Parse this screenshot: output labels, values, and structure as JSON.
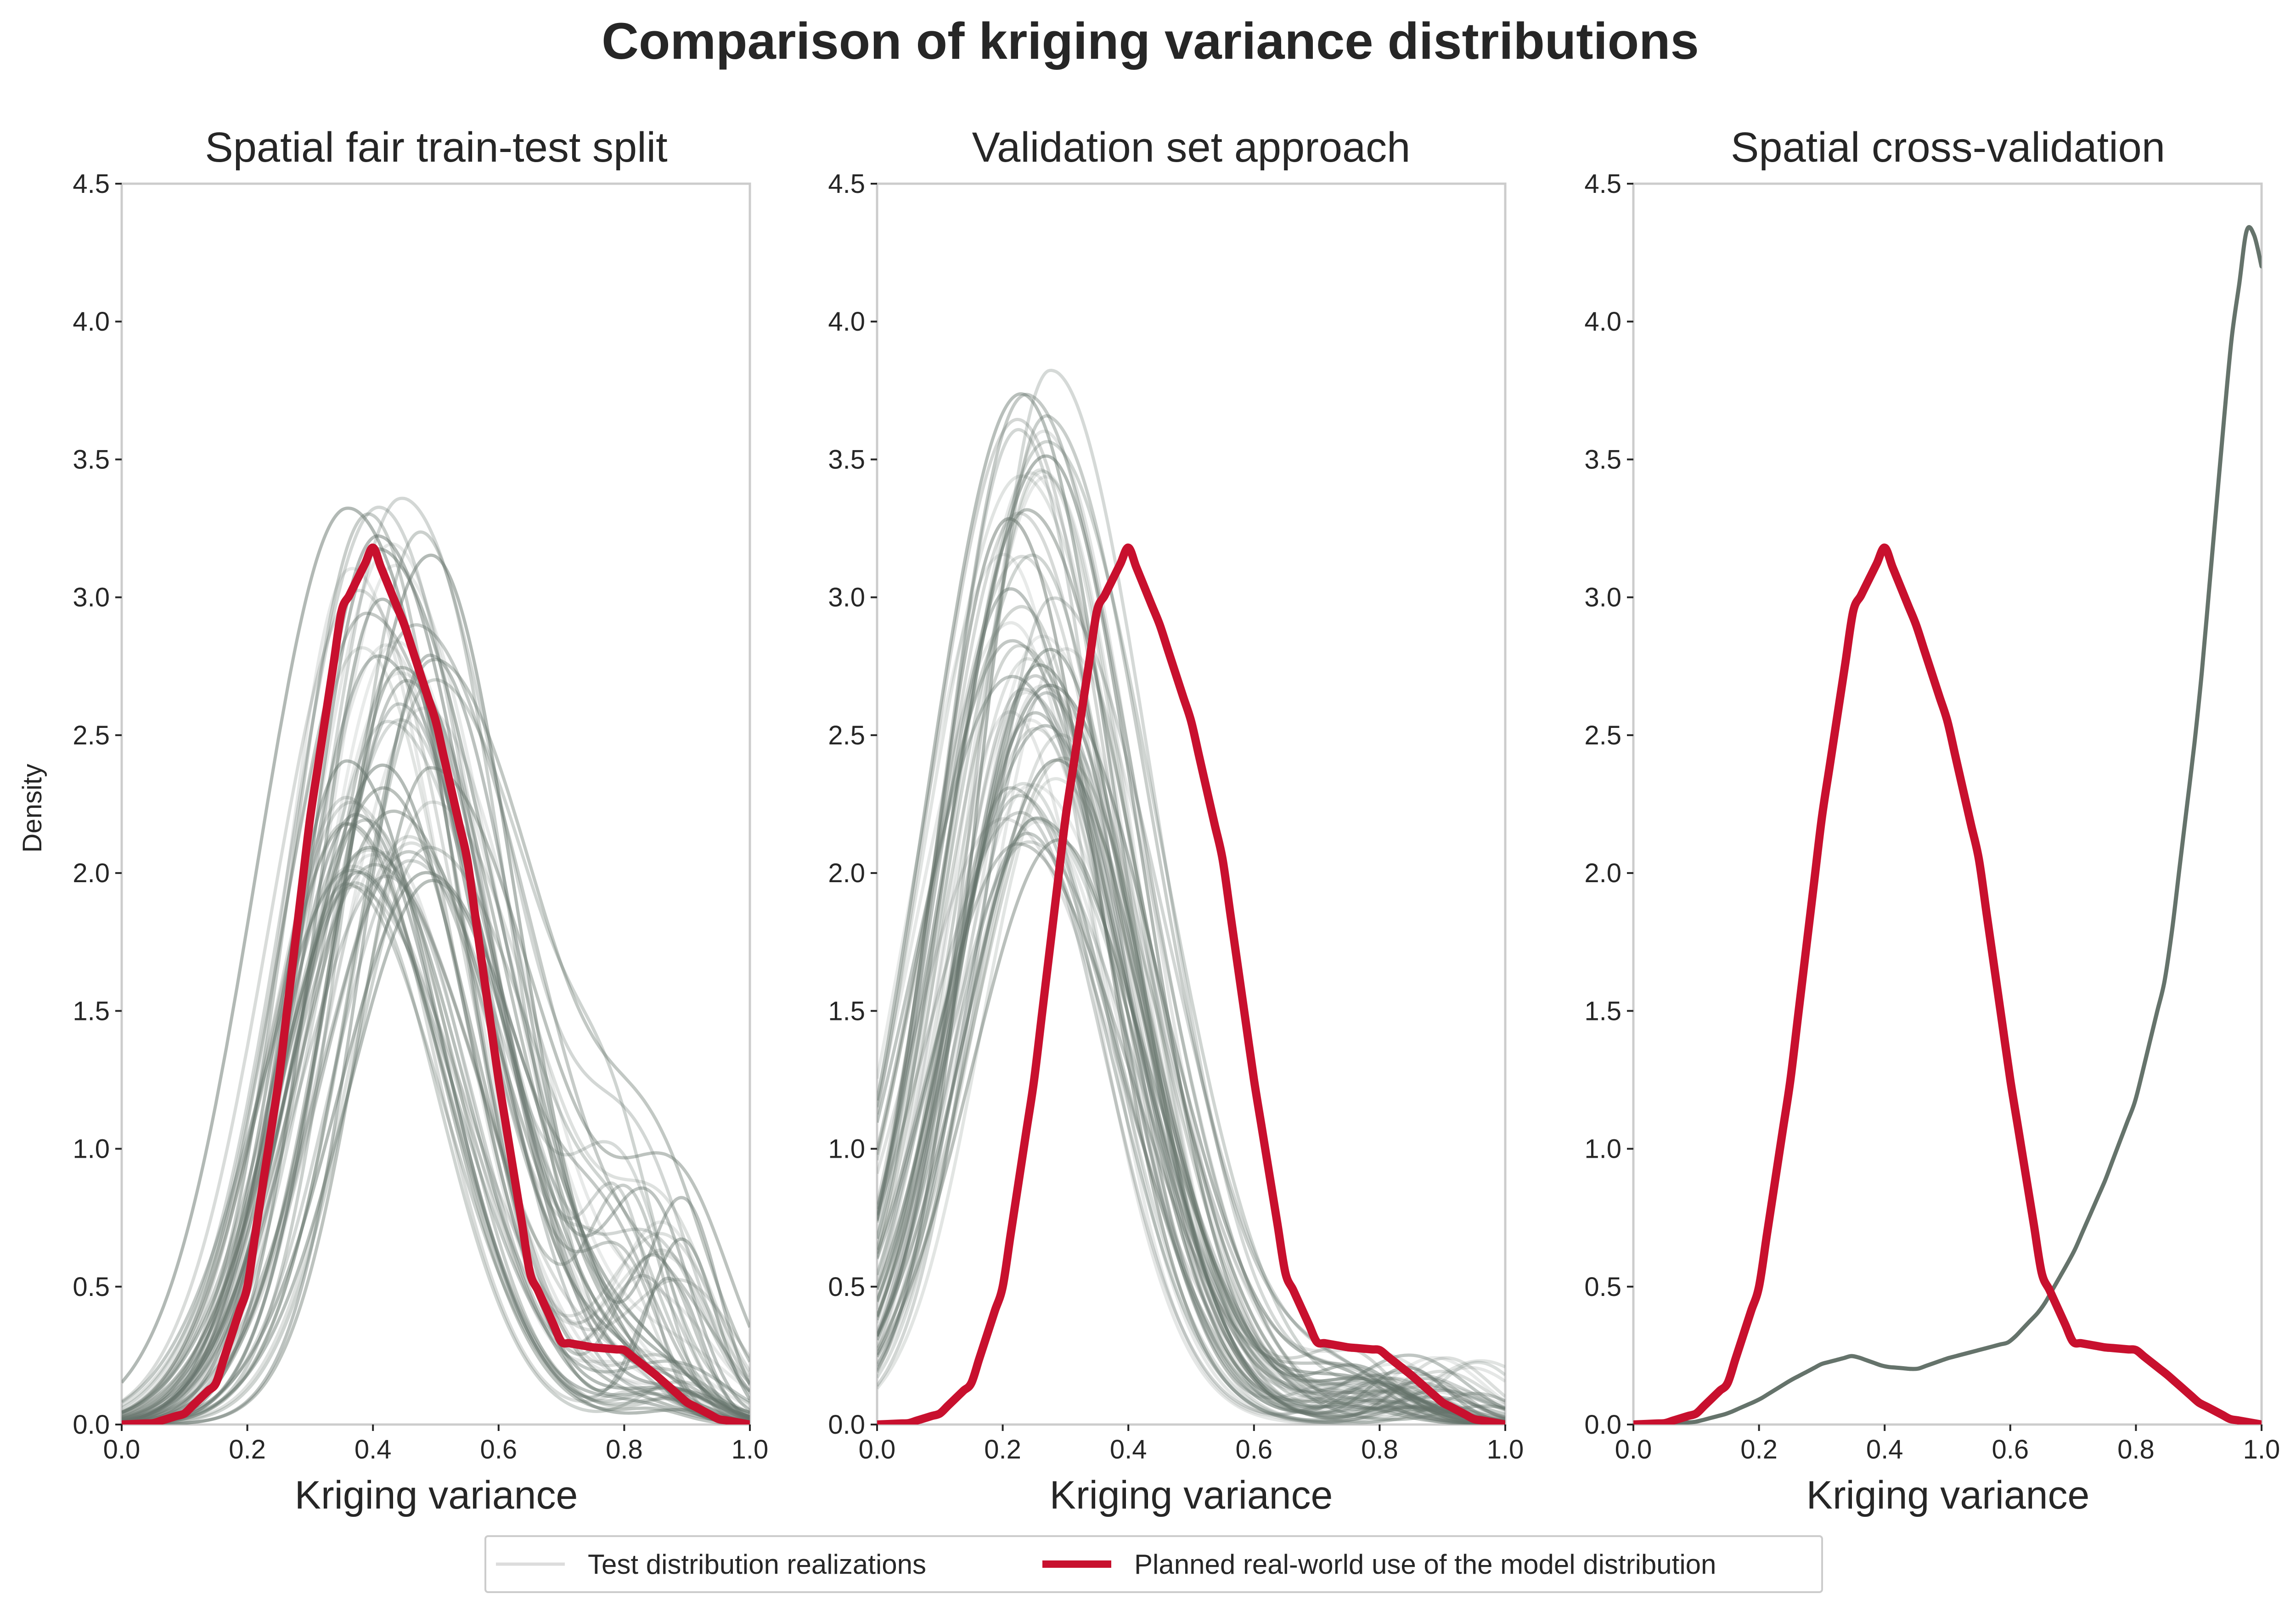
{
  "title": "Comparison of kriging variance distributions",
  "legend": {
    "items": [
      {
        "label": "Test distribution realizations",
        "color": "#dcdcdc"
      },
      {
        "label": "Planned real-world use of the model distribution",
        "color": "#c8102e"
      }
    ]
  },
  "colors": {
    "realization": "#65736b",
    "planned": "#c8102e",
    "axes": "#cccccc",
    "text": "#262626"
  },
  "chart_data": [
    {
      "type": "line",
      "title": "Spatial fair train-test split",
      "xlabel": "Kriging variance",
      "ylabel": "Density",
      "xlim": [
        0.0,
        1.0
      ],
      "ylim": [
        0.0,
        4.5
      ],
      "xticks": [
        "0.0",
        "0.2",
        "0.4",
        "0.6",
        "0.8",
        "1.0"
      ],
      "yticks": [
        "0.0",
        "0.5",
        "1.0",
        "1.5",
        "2.0",
        "2.5",
        "3.0",
        "3.5",
        "4.0",
        "4.5"
      ],
      "grid": false,
      "realizations": {
        "count": 60,
        "peak_x_range": [
          0.35,
          0.5
        ],
        "peak_density_range": [
          1.95,
          3.36
        ],
        "description": "unimodal densities, faint tail bump near 0.8"
      },
      "series": [
        {
          "name": "Planned real-world use of the model distribution",
          "x": [
            0.0,
            0.05,
            0.1,
            0.15,
            0.2,
            0.25,
            0.3,
            0.35,
            0.4,
            0.45,
            0.5,
            0.55,
            0.6,
            0.65,
            0.7,
            0.75,
            0.8,
            0.85,
            0.9,
            0.95,
            1.0
          ],
          "y": [
            0.0,
            0.005,
            0.04,
            0.15,
            0.5,
            1.25,
            2.2,
            2.95,
            3.18,
            2.9,
            2.55,
            2.05,
            1.25,
            0.55,
            0.3,
            0.28,
            0.27,
            0.18,
            0.08,
            0.02,
            0.0
          ]
        }
      ]
    },
    {
      "type": "line",
      "title": "Validation set approach",
      "xlabel": "Kriging variance",
      "ylabel": "",
      "xlim": [
        0.0,
        1.0
      ],
      "ylim": [
        0.0,
        4.5
      ],
      "xticks": [
        "0.0",
        "0.2",
        "0.4",
        "0.6",
        "0.8",
        "1.0"
      ],
      "yticks": [
        "0.0",
        "0.5",
        "1.0",
        "1.5",
        "2.0",
        "2.5",
        "3.0",
        "3.5",
        "4.0",
        "4.5"
      ],
      "grid": false,
      "realizations": {
        "count": 60,
        "peak_x_range": [
          0.2,
          0.3
        ],
        "peak_density_range": [
          2.1,
          3.83
        ],
        "description": "unimodal densities shifted left of the planned distribution"
      },
      "series": [
        {
          "name": "Planned real-world use of the model distribution",
          "x": [
            0.0,
            0.05,
            0.1,
            0.15,
            0.2,
            0.25,
            0.3,
            0.35,
            0.4,
            0.45,
            0.5,
            0.55,
            0.6,
            0.65,
            0.7,
            0.75,
            0.8,
            0.85,
            0.9,
            0.95,
            1.0
          ],
          "y": [
            0.0,
            0.005,
            0.04,
            0.15,
            0.5,
            1.25,
            2.2,
            2.95,
            3.18,
            2.9,
            2.55,
            2.05,
            1.25,
            0.55,
            0.3,
            0.28,
            0.27,
            0.18,
            0.08,
            0.02,
            0.0
          ]
        }
      ]
    },
    {
      "type": "line",
      "title": "Spatial cross-validation",
      "xlabel": "Kriging variance",
      "ylabel": "",
      "xlim": [
        0.0,
        1.0
      ],
      "ylim": [
        0.0,
        4.5
      ],
      "xticks": [
        "0.0",
        "0.2",
        "0.4",
        "0.6",
        "0.8",
        "1.0"
      ],
      "yticks": [
        "0.0",
        "0.5",
        "1.0",
        "1.5",
        "2.0",
        "2.5",
        "3.0",
        "3.5",
        "4.0",
        "4.5"
      ],
      "grid": false,
      "series": [
        {
          "name": "Test distribution realizations",
          "x": [
            0.05,
            0.1,
            0.15,
            0.2,
            0.25,
            0.3,
            0.35,
            0.4,
            0.45,
            0.5,
            0.55,
            0.6,
            0.65,
            0.7,
            0.75,
            0.8,
            0.85,
            0.9,
            0.95,
            0.98,
            1.0
          ],
          "y": [
            0.0,
            0.01,
            0.04,
            0.09,
            0.16,
            0.22,
            0.25,
            0.21,
            0.2,
            0.24,
            0.27,
            0.3,
            0.42,
            0.62,
            0.88,
            1.18,
            1.65,
            2.6,
            3.9,
            4.39,
            4.2
          ]
        },
        {
          "name": "Planned real-world use of the model distribution",
          "x": [
            0.0,
            0.05,
            0.1,
            0.15,
            0.2,
            0.25,
            0.3,
            0.35,
            0.4,
            0.45,
            0.5,
            0.55,
            0.6,
            0.65,
            0.7,
            0.75,
            0.8,
            0.85,
            0.9,
            0.95,
            1.0
          ],
          "y": [
            0.0,
            0.005,
            0.04,
            0.15,
            0.5,
            1.25,
            2.2,
            2.95,
            3.18,
            2.9,
            2.55,
            2.05,
            1.25,
            0.55,
            0.3,
            0.28,
            0.27,
            0.18,
            0.08,
            0.02,
            0.0
          ]
        }
      ]
    }
  ]
}
